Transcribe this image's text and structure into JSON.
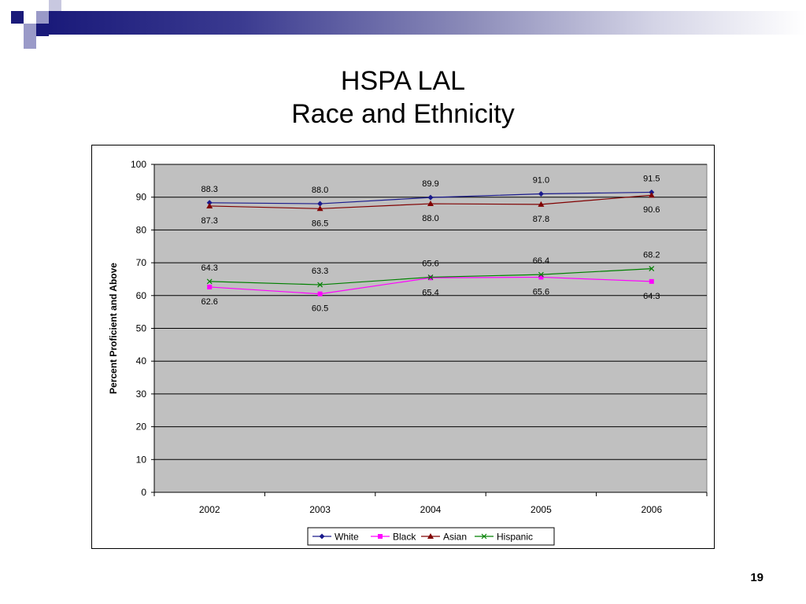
{
  "slide": {
    "title_line1": "HSPA LAL",
    "title_line2": "Race and Ethnicity",
    "page_number": "19"
  },
  "chart_data": {
    "type": "line",
    "title": "",
    "xlabel": "",
    "ylabel": "Percent Proficient and Above",
    "categories": [
      "2002",
      "2003",
      "2004",
      "2005",
      "2006"
    ],
    "ylim": [
      0,
      100
    ],
    "yticks": [
      "0",
      "10",
      "20",
      "30",
      "40",
      "50",
      "60",
      "70",
      "80",
      "90",
      "100"
    ],
    "grid": true,
    "legend_position": "bottom",
    "plot_background": "#c0c0c0",
    "series": [
      {
        "name": "White",
        "values": [
          88.3,
          88.0,
          89.9,
          91.0,
          91.5
        ],
        "labels": [
          "88.3",
          "88.0",
          "89.9",
          "91.0",
          "91.5"
        ],
        "color": "#1a1a8c",
        "marker": "diamond"
      },
      {
        "name": "Black",
        "values": [
          62.6,
          60.5,
          65.4,
          65.6,
          64.3
        ],
        "labels": [
          "62.6",
          "60.5",
          "65.4",
          "65.6",
          "64.3"
        ],
        "color": "#ff00ff",
        "marker": "square"
      },
      {
        "name": "Asian",
        "values": [
          87.3,
          86.5,
          88.0,
          87.8,
          90.6
        ],
        "labels": [
          "87.3",
          "86.5",
          "88.0",
          "87.8",
          "90.6"
        ],
        "color": "#800000",
        "marker": "triangle"
      },
      {
        "name": "Hispanic",
        "values": [
          64.3,
          63.3,
          65.6,
          66.4,
          68.2
        ],
        "labels": [
          "64.3",
          "63.3",
          "65.6",
          "66.4",
          "68.2"
        ],
        "color": "#008000",
        "marker": "x"
      }
    ]
  }
}
